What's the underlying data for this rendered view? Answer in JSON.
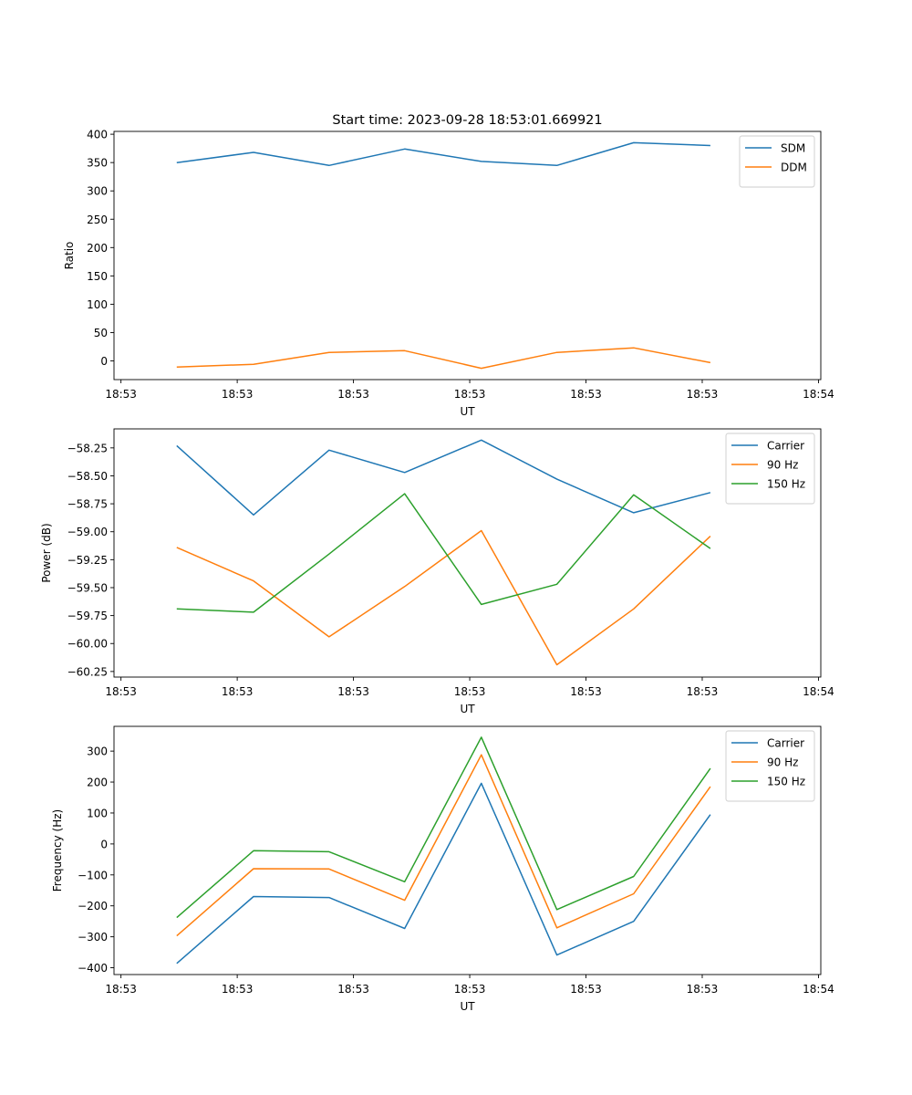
{
  "figure": {
    "title": "Start time: 2023-09-28 18:53:01.669921"
  },
  "chart_data": [
    {
      "type": "line",
      "title": "Start time: 2023-09-28 18:53:01.669921",
      "xlabel": "UT",
      "ylabel": "Ratio",
      "x_unit": "seconds after 18:53:00",
      "xlim": [
        -0.6,
        60.2
      ],
      "x_ticks": [
        0,
        10,
        20,
        30,
        40,
        50,
        60
      ],
      "x_tick_labels": [
        "18:53",
        "18:53",
        "18:53",
        "18:53",
        "18:53",
        "18:53",
        "18:54"
      ],
      "ylim": [
        -33,
        405
      ],
      "y_ticks": [
        0,
        50,
        100,
        150,
        200,
        250,
        300,
        350,
        400
      ],
      "y_tick_labels": [
        "0",
        "50",
        "100",
        "150",
        "200",
        "250",
        "300",
        "350",
        "400"
      ],
      "grid": false,
      "legend_position": "top-right",
      "x": [
        4.8,
        11.4,
        17.9,
        24.4,
        31.0,
        37.5,
        44.1,
        50.7
      ],
      "series": [
        {
          "name": "SDM",
          "color": "#1f77b4",
          "values": [
            350,
            368,
            345,
            374,
            352,
            345,
            385,
            380
          ]
        },
        {
          "name": "DDM",
          "color": "#ff7f0e",
          "values": [
            -11,
            -6,
            15,
            18,
            -13,
            15,
            23,
            -3
          ]
        }
      ]
    },
    {
      "type": "line",
      "title": "",
      "xlabel": "UT",
      "ylabel": "Power (dB)",
      "x_unit": "seconds after 18:53:00",
      "xlim": [
        -0.6,
        60.2
      ],
      "x_ticks": [
        0,
        10,
        20,
        30,
        40,
        50,
        60
      ],
      "x_tick_labels": [
        "18:53",
        "18:53",
        "18:53",
        "18:53",
        "18:53",
        "18:53",
        "18:54"
      ],
      "ylim": [
        -60.3,
        -58.08
      ],
      "y_ticks": [
        -58.25,
        -58.5,
        -58.75,
        -59.0,
        -59.25,
        -59.5,
        -59.75,
        -60.0,
        -60.25
      ],
      "y_tick_labels": [
        "−58.25",
        "−58.50",
        "−58.75",
        "−59.00",
        "−59.25",
        "−59.50",
        "−59.75",
        "−60.00",
        "−60.25"
      ],
      "grid": false,
      "legend_position": "top-right",
      "x": [
        4.8,
        11.4,
        17.9,
        24.4,
        31.0,
        37.5,
        44.1,
        50.7
      ],
      "series": [
        {
          "name": "Carrier",
          "color": "#1f77b4",
          "values": [
            -58.23,
            -58.85,
            -58.27,
            -58.47,
            -58.18,
            -58.53,
            -58.83,
            -58.65
          ]
        },
        {
          "name": "90 Hz",
          "color": "#ff7f0e",
          "values": [
            -59.14,
            -59.44,
            -59.94,
            -59.49,
            -58.99,
            -60.19,
            -59.69,
            -59.04
          ]
        },
        {
          "name": "150 Hz",
          "color": "#2ca02c",
          "values": [
            -59.69,
            -59.72,
            -59.2,
            -58.66,
            -59.65,
            -59.47,
            -58.67,
            -59.15
          ]
        }
      ]
    },
    {
      "type": "line",
      "title": "",
      "xlabel": "UT",
      "ylabel": "Frequency (Hz)",
      "x_unit": "seconds after 18:53:00",
      "xlim": [
        -0.6,
        60.2
      ],
      "x_ticks": [
        0,
        10,
        20,
        30,
        40,
        50,
        60
      ],
      "x_tick_labels": [
        "18:53",
        "18:53",
        "18:53",
        "18:53",
        "18:53",
        "18:53",
        "18:54"
      ],
      "ylim": [
        -422,
        380
      ],
      "y_ticks": [
        -400,
        -300,
        -200,
        -100,
        0,
        100,
        200,
        300
      ],
      "y_tick_labels": [
        "−400",
        "−300",
        "−200",
        "−100",
        "0",
        "100",
        "200",
        "300"
      ],
      "grid": false,
      "legend_position": "top-right",
      "x": [
        4.8,
        11.4,
        17.9,
        24.4,
        31.0,
        37.5,
        44.1,
        50.7
      ],
      "series": [
        {
          "name": "Carrier",
          "color": "#1f77b4",
          "values": [
            -386,
            -170,
            -173,
            -273,
            196,
            -359,
            -250,
            95
          ]
        },
        {
          "name": "90 Hz",
          "color": "#ff7f0e",
          "values": [
            -297,
            -80,
            -81,
            -182,
            288,
            -271,
            -161,
            185
          ]
        },
        {
          "name": "150 Hz",
          "color": "#2ca02c",
          "values": [
            -238,
            -22,
            -25,
            -122,
            345,
            -212,
            -105,
            244
          ]
        }
      ]
    }
  ]
}
